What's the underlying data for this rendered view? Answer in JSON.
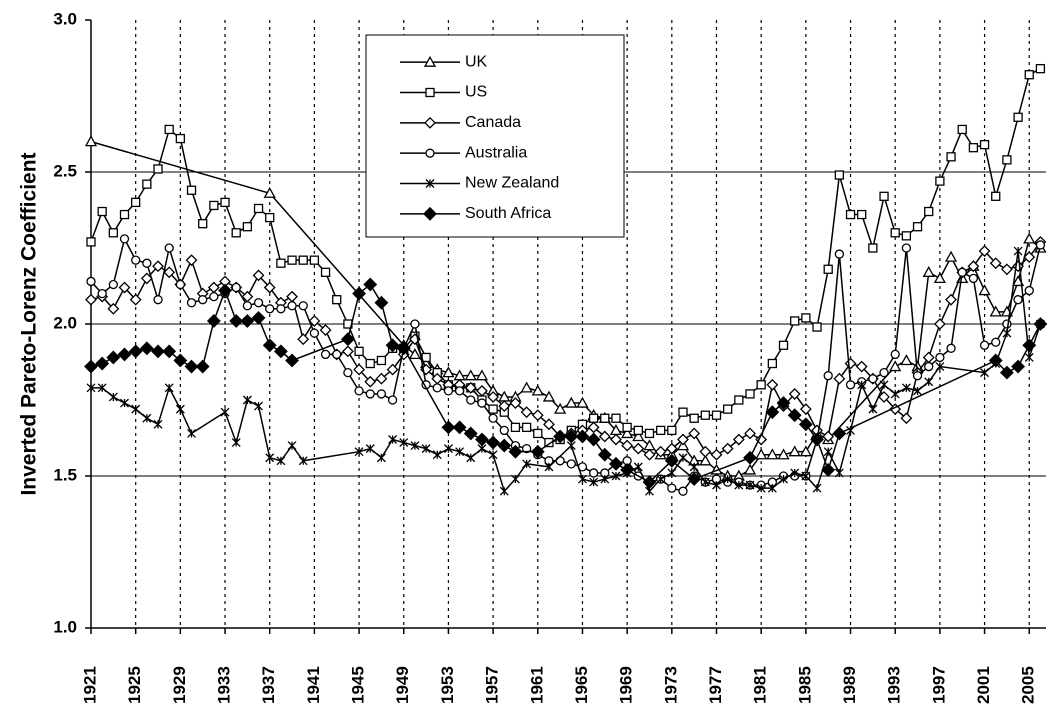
{
  "chart_data": {
    "type": "line",
    "y_label": "Inverted Pareto-Lorenz Coefficient",
    "xlim": [
      1921,
      2006.5
    ],
    "xticks": [
      1921,
      1925,
      1929,
      1933,
      1937,
      1941,
      1945,
      1949,
      1953,
      1957,
      1961,
      1965,
      1969,
      1973,
      1977,
      1981,
      1985,
      1989,
      1993,
      1997,
      2001,
      2005
    ],
    "ylim": [
      1.0,
      3.0
    ],
    "yticks": [
      {
        "value": 1.0,
        "label": "1.0"
      },
      {
        "value": 1.5,
        "label": "1.5"
      },
      {
        "value": 2.0,
        "label": "2.0"
      },
      {
        "value": 2.5,
        "label": "2.5"
      },
      {
        "value": 3.0,
        "label": "3.0"
      }
    ],
    "grid": true,
    "legend": "top-center",
    "series": [
      {
        "name": "UK",
        "color": "#000000",
        "marker": "triangle",
        "x": [
          1921,
          1937,
          1949,
          1950,
          1951,
          1952,
          1953,
          1954,
          1955,
          1956,
          1957,
          1958,
          1959,
          1960,
          1961,
          1962,
          1963,
          1964,
          1965,
          1966,
          1967,
          1968,
          1969,
          1970,
          1971,
          1972,
          1973,
          1974,
          1975,
          1976,
          1977,
          1978,
          1979,
          1980,
          1981,
          1982,
          1983,
          1984,
          1985,
          1986,
          1987,
          1993,
          1994,
          1995,
          1996,
          1997,
          1998,
          1999,
          2000,
          2001,
          2002,
          2003,
          2004,
          2005,
          2006
        ],
        "values": [
          2.6,
          2.43,
          1.93,
          1.9,
          1.87,
          1.85,
          1.84,
          1.83,
          1.83,
          1.83,
          1.78,
          1.76,
          1.76,
          1.79,
          1.78,
          1.76,
          1.72,
          1.74,
          1.74,
          1.7,
          1.69,
          1.65,
          1.64,
          1.63,
          1.6,
          1.57,
          1.57,
          1.6,
          1.55,
          1.55,
          1.52,
          1.5,
          1.5,
          1.52,
          1.57,
          1.57,
          1.57,
          1.58,
          1.58,
          1.64,
          1.62,
          1.86,
          1.88,
          1.86,
          2.17,
          2.15,
          2.22,
          2.15,
          2.19,
          2.11,
          2.04,
          2.04,
          2.14,
          2.28,
          2.25
        ]
      },
      {
        "name": "US",
        "color": "#000000",
        "marker": "square",
        "x": [
          1921,
          1922,
          1923,
          1924,
          1925,
          1926,
          1927,
          1928,
          1929,
          1930,
          1931,
          1932,
          1933,
          1934,
          1935,
          1936,
          1937,
          1938,
          1939,
          1940,
          1941,
          1942,
          1943,
          1944,
          1945,
          1946,
          1947,
          1948,
          1949,
          1950,
          1951,
          1952,
          1953,
          1954,
          1955,
          1956,
          1957,
          1958,
          1959,
          1960,
          1961,
          1962,
          1963,
          1964,
          1965,
          1966,
          1967,
          1968,
          1969,
          1970,
          1971,
          1972,
          1973,
          1974,
          1975,
          1976,
          1977,
          1978,
          1979,
          1980,
          1981,
          1982,
          1983,
          1984,
          1985,
          1986,
          1987,
          1988,
          1989,
          1990,
          1991,
          1992,
          1993,
          1994,
          1995,
          1996,
          1997,
          1998,
          1999,
          2000,
          2001,
          2002,
          2003,
          2004,
          2005,
          2006
        ],
        "values": [
          2.27,
          2.37,
          2.3,
          2.36,
          2.4,
          2.46,
          2.51,
          2.64,
          2.61,
          2.44,
          2.33,
          2.39,
          2.4,
          2.3,
          2.32,
          2.38,
          2.35,
          2.2,
          2.21,
          2.21,
          2.21,
          2.17,
          2.08,
          2.0,
          1.91,
          1.87,
          1.88,
          1.92,
          1.92,
          1.96,
          1.89,
          1.84,
          1.8,
          1.79,
          1.79,
          1.75,
          1.72,
          1.71,
          1.66,
          1.66,
          1.64,
          1.61,
          1.62,
          1.65,
          1.67,
          1.69,
          1.69,
          1.69,
          1.66,
          1.65,
          1.64,
          1.65,
          1.65,
          1.71,
          1.69,
          1.7,
          1.7,
          1.72,
          1.75,
          1.77,
          1.8,
          1.87,
          1.93,
          2.01,
          2.02,
          1.99,
          2.18,
          2.49,
          2.36,
          2.36,
          2.25,
          2.42,
          2.3,
          2.29,
          2.32,
          2.37,
          2.47,
          2.55,
          2.64,
          2.58,
          2.59,
          2.42,
          2.54,
          2.68,
          2.82,
          2.84
        ]
      },
      {
        "name": "Canada",
        "color": "#000000",
        "marker": "diamond",
        "x": [
          1921,
          1922,
          1923,
          1924,
          1925,
          1926,
          1927,
          1928,
          1929,
          1930,
          1931,
          1932,
          1933,
          1934,
          1935,
          1936,
          1937,
          1938,
          1939,
          1940,
          1941,
          1942,
          1943,
          1944,
          1945,
          1946,
          1947,
          1948,
          1949,
          1950,
          1951,
          1952,
          1953,
          1954,
          1955,
          1956,
          1957,
          1958,
          1959,
          1960,
          1961,
          1962,
          1963,
          1964,
          1965,
          1966,
          1967,
          1968,
          1969,
          1970,
          1971,
          1972,
          1973,
          1974,
          1975,
          1976,
          1977,
          1978,
          1979,
          1980,
          1981,
          1982,
          1983,
          1984,
          1985,
          1986,
          1987,
          1988,
          1989,
          1990,
          1991,
          1992,
          1993,
          1994,
          1995,
          1996,
          1997,
          1998,
          1999,
          2000,
          2001,
          2002,
          2003,
          2004,
          2005,
          2006
        ],
        "values": [
          2.08,
          2.09,
          2.05,
          2.12,
          2.08,
          2.15,
          2.19,
          2.17,
          2.13,
          2.21,
          2.1,
          2.12,
          2.14,
          2.12,
          2.09,
          2.16,
          2.12,
          2.07,
          2.09,
          1.95,
          2.01,
          1.98,
          1.9,
          1.91,
          1.85,
          1.81,
          1.82,
          1.85,
          1.9,
          1.95,
          1.85,
          1.82,
          1.8,
          1.8,
          1.79,
          1.78,
          1.76,
          1.73,
          1.74,
          1.71,
          1.7,
          1.67,
          1.63,
          1.64,
          1.65,
          1.66,
          1.63,
          1.62,
          1.6,
          1.59,
          1.57,
          1.58,
          1.59,
          1.62,
          1.64,
          1.58,
          1.57,
          1.59,
          1.62,
          1.64,
          1.62,
          1.8,
          1.73,
          1.77,
          1.72,
          1.65,
          1.63,
          1.82,
          1.87,
          1.86,
          1.82,
          1.76,
          1.72,
          1.69,
          1.84,
          1.89,
          2.0,
          2.08,
          2.17,
          2.19,
          2.24,
          2.2,
          2.18,
          2.19,
          2.22,
          2.27
        ]
      },
      {
        "name": "Australia",
        "color": "#000000",
        "marker": "circle",
        "x": [
          1921,
          1922,
          1923,
          1924,
          1925,
          1926,
          1927,
          1928,
          1929,
          1930,
          1931,
          1932,
          1933,
          1934,
          1935,
          1936,
          1937,
          1938,
          1939,
          1940,
          1941,
          1942,
          1943,
          1944,
          1945,
          1946,
          1947,
          1948,
          1949,
          1950,
          1951,
          1952,
          1953,
          1954,
          1955,
          1956,
          1957,
          1958,
          1959,
          1960,
          1961,
          1962,
          1963,
          1964,
          1965,
          1966,
          1967,
          1968,
          1969,
          1970,
          1971,
          1972,
          1973,
          1974,
          1975,
          1976,
          1977,
          1978,
          1979,
          1980,
          1981,
          1982,
          1983,
          1984,
          1985,
          1986,
          1987,
          1988,
          1989,
          1990,
          1991,
          1992,
          1993,
          1994,
          1995,
          1996,
          1997,
          1998,
          1999,
          2000,
          2001,
          2002,
          2003,
          2004,
          2005,
          2006
        ],
        "values": [
          2.14,
          2.1,
          2.13,
          2.28,
          2.21,
          2.2,
          2.08,
          2.25,
          2.13,
          2.07,
          2.08,
          2.09,
          2.1,
          2.12,
          2.06,
          2.07,
          2.05,
          2.05,
          2.06,
          2.06,
          1.97,
          1.9,
          1.9,
          1.84,
          1.78,
          1.77,
          1.77,
          1.75,
          1.92,
          2.0,
          1.8,
          1.79,
          1.78,
          1.78,
          1.75,
          1.74,
          1.69,
          1.65,
          1.6,
          1.59,
          1.57,
          1.55,
          1.55,
          1.54,
          1.53,
          1.51,
          1.51,
          1.54,
          1.55,
          1.5,
          1.48,
          1.49,
          1.46,
          1.45,
          1.5,
          1.48,
          1.49,
          1.48,
          1.48,
          1.47,
          1.47,
          1.48,
          1.5,
          1.5,
          1.5,
          1.62,
          1.83,
          2.23,
          1.8,
          1.81,
          1.82,
          1.84,
          1.9,
          2.25,
          1.83,
          1.86,
          1.89,
          1.92,
          2.17,
          2.15,
          1.93,
          1.94,
          2.0,
          2.08,
          2.11,
          2.26
        ]
      },
      {
        "name": "New Zealand",
        "color": "#000000",
        "marker": "star",
        "x": [
          1921,
          1922,
          1923,
          1924,
          1925,
          1926,
          1927,
          1928,
          1929,
          1930,
          1933,
          1934,
          1935,
          1936,
          1937,
          1938,
          1939,
          1940,
          1945,
          1946,
          1947,
          1948,
          1949,
          1950,
          1951,
          1952,
          1953,
          1954,
          1955,
          1956,
          1957,
          1958,
          1959,
          1960,
          1962,
          1964,
          1965,
          1966,
          1967,
          1968,
          1969,
          1970,
          1971,
          1972,
          1973,
          1974,
          1975,
          1976,
          1977,
          1978,
          1979,
          1980,
          1981,
          1982,
          1983,
          1984,
          1985,
          1986,
          1987,
          1988,
          1989,
          1990,
          1991,
          1992,
          1993,
          1994,
          1995,
          1996,
          1997,
          2001,
          2002,
          2003,
          2004,
          2005,
          2006
        ],
        "values": [
          1.79,
          1.79,
          1.76,
          1.74,
          1.72,
          1.69,
          1.67,
          1.79,
          1.72,
          1.64,
          1.71,
          1.61,
          1.75,
          1.73,
          1.56,
          1.55,
          1.6,
          1.55,
          1.58,
          1.59,
          1.56,
          1.62,
          1.61,
          1.6,
          1.59,
          1.57,
          1.59,
          1.58,
          1.56,
          1.59,
          1.57,
          1.45,
          1.49,
          1.54,
          1.53,
          1.6,
          1.49,
          1.48,
          1.49,
          1.5,
          1.51,
          1.53,
          1.45,
          1.49,
          1.51,
          1.56,
          1.53,
          1.48,
          1.47,
          1.49,
          1.47,
          1.47,
          1.46,
          1.46,
          1.49,
          1.51,
          1.5,
          1.46,
          1.58,
          1.51,
          1.65,
          1.8,
          1.72,
          1.8,
          1.77,
          1.79,
          1.78,
          1.81,
          1.86,
          1.84,
          1.87,
          1.97,
          2.24,
          1.89,
          2.0
        ]
      },
      {
        "name": "South Africa",
        "color": "#000000",
        "marker": "filled-diamond",
        "x": [
          1921,
          1922,
          1923,
          1924,
          1925,
          1926,
          1927,
          1928,
          1929,
          1930,
          1931,
          1932,
          1933,
          1934,
          1935,
          1936,
          1937,
          1938,
          1939,
          1944,
          1945,
          1946,
          1947,
          1948,
          1949,
          1953,
          1954,
          1955,
          1956,
          1957,
          1958,
          1959,
          1961,
          1963,
          1964,
          1965,
          1966,
          1967,
          1968,
          1969,
          1971,
          1973,
          1975,
          1980,
          1982,
          1983,
          1984,
          1985,
          1986,
          1987,
          1988,
          2002,
          2003,
          2004,
          2005,
          2006
        ],
        "values": [
          1.86,
          1.87,
          1.89,
          1.9,
          1.91,
          1.92,
          1.91,
          1.91,
          1.88,
          1.86,
          1.86,
          2.01,
          2.11,
          2.01,
          2.01,
          2.02,
          1.93,
          1.91,
          1.88,
          1.95,
          2.1,
          2.13,
          2.07,
          1.93,
          1.92,
          1.66,
          1.66,
          1.64,
          1.62,
          1.61,
          1.6,
          1.58,
          1.58,
          1.63,
          1.63,
          1.63,
          1.62,
          1.57,
          1.54,
          1.52,
          1.48,
          1.55,
          1.49,
          1.56,
          1.71,
          1.74,
          1.7,
          1.67,
          1.62,
          1.52,
          1.64,
          1.88,
          1.84,
          1.86,
          1.93,
          2.0
        ]
      }
    ]
  }
}
